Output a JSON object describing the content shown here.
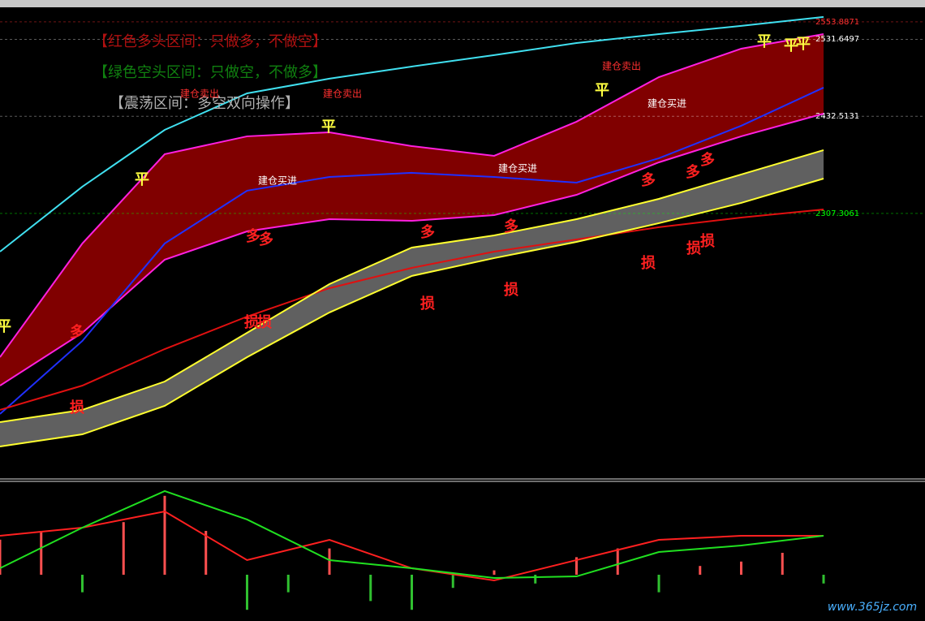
{
  "chart_data": [
    {
      "type": "line",
      "categories": [
        null,
        null,
        null,
        null,
        null,
        null,
        null,
        null,
        null,
        null,
        null
      ],
      "ylim": [
        1997.0,
        2571.6
      ],
      "yticks": [
        {
          "value": 2553.8871,
          "label": "2553.8871",
          "color": "#ff3030"
        },
        {
          "value": 2531.6497,
          "label": "2531.6497",
          "color": "#ffffff"
        },
        {
          "value": 2432.5131,
          "label": "2432.5131",
          "color": "#ffffff"
        },
        {
          "value": 2307.3061,
          "label": "2307.3061",
          "color": "#00ff00"
        }
      ],
      "series": [
        {
          "color": "#40e0f0",
          "values": [
            2258.2,
            2341.8,
            2414.9,
            2461.9,
            2480.8,
            2496.4,
            2511.1,
            2526.7,
            2538.2,
            2548.7,
            2560.2
          ]
        },
        {
          "color": "#ff20e0",
          "values": [
            2122.4,
            2268.7,
            2383.6,
            2406.6,
            2411.8,
            2394.0,
            2381.5,
            2425.4,
            2482.8,
            2519.4,
            2538.2
          ]
        },
        {
          "color": "#ff20e0",
          "values": [
            2085.8,
            2153.7,
            2247.8,
            2284.3,
            2300.0,
            2297.9,
            2305.2,
            2331.3,
            2373.1,
            2406.6,
            2435.8
          ]
        },
        {
          "color": "#2030ff",
          "values": [
            2049.3,
            2143.3,
            2268.7,
            2336.6,
            2354.3,
            2359.6,
            2354.3,
            2347.0,
            2378.4,
            2420.2,
            2469.3
          ]
        },
        {
          "color": "#e01010",
          "values": [
            2054.5,
            2085.8,
            2132.8,
            2174.6,
            2211.2,
            2237.3,
            2258.2,
            2273.9,
            2289.6,
            2302.1,
            2312.5
          ]
        },
        {
          "color": "#ffff30",
          "values": [
            2038.8,
            2054.5,
            2091.0,
            2153.7,
            2216.4,
            2263.4,
            2279.1,
            2300.0,
            2326.1,
            2357.5,
            2388.8
          ]
        },
        {
          "color": "#ffff30",
          "values": [
            2007.5,
            2023.1,
            2059.7,
            2122.4,
            2179.9,
            2226.9,
            2249.9,
            2270.7,
            2294.8,
            2320.9,
            2352.2
          ]
        }
      ],
      "legend_texts": [
        {
          "text": "【红色多头区间：只做多，不做空】",
          "color": "#b01010"
        },
        {
          "text": "【绿色空头区间：只做空，不做多】",
          "color": "#108010"
        },
        {
          "text": "【震荡区间：多空双向操作】",
          "color": "#b0b0b0"
        }
      ],
      "annotations": [
        "平",
        "平",
        "平",
        "平",
        "平",
        "平",
        "平",
        "多",
        "多",
        "多",
        "多",
        "多",
        "多",
        "多",
        "多",
        "损",
        "损",
        "损",
        "损",
        "损",
        "损",
        "损",
        "损",
        "建仓卖出",
        "建仓卖出",
        "建仓卖出",
        "建仓买进",
        "建仓买进",
        "建仓买进"
      ]
    },
    {
      "type": "macd",
      "categories": [
        null,
        null,
        null,
        null,
        null,
        null,
        null,
        null,
        null,
        null,
        null
      ],
      "ylim": [
        -100,
        100
      ],
      "series": [
        {
          "color": "#ff2020",
          "values": [
            44.4,
            53.7,
            72.2,
            16.7,
            39.8,
            7.4,
            -6.5,
            16.7,
            39.8,
            44.4,
            44.4
          ]
        },
        {
          "color": "#20e020",
          "values": [
            7.4,
            53.7,
            95.4,
            63.0,
            16.7,
            7.4,
            -3.7,
            -1.9,
            25.9,
            33.3,
            44.4
          ]
        }
      ],
      "bars": [
        40,
        50,
        -20,
        60,
        90,
        50,
        -40,
        -20,
        30,
        -30,
        -40,
        -15,
        5,
        -10,
        20,
        30,
        -20,
        10,
        15,
        25,
        -10
      ]
    }
  ],
  "watermark": "www.365jz.com"
}
